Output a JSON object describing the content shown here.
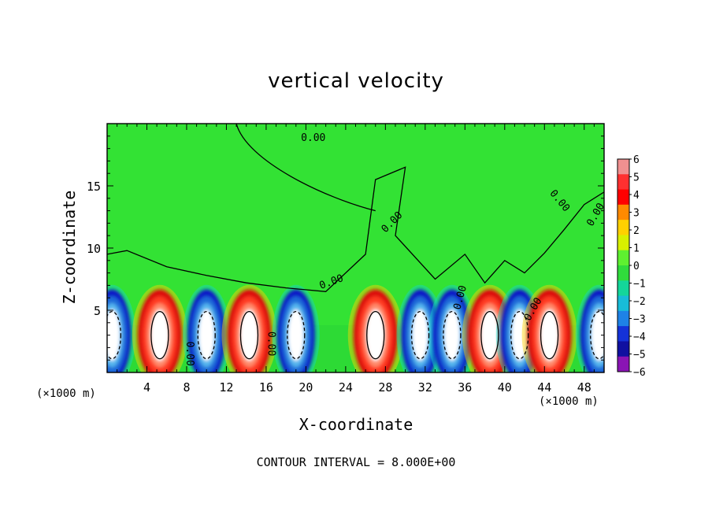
{
  "chart_data": {
    "type": "heatmap",
    "title": "vertical velocity",
    "xlabel": "X-coordinate",
    "ylabel": "Z-coordinate",
    "x_unit": "(×1000 m)",
    "z_unit": "(×1000 m)",
    "xlim": [
      0,
      50
    ],
    "ylim": [
      0,
      20
    ],
    "x_ticks": [
      4,
      8,
      12,
      16,
      20,
      24,
      28,
      32,
      36,
      40,
      44,
      48
    ],
    "y_ticks": [
      5,
      10,
      15
    ],
    "colorbar_ticks": [
      6,
      5,
      4,
      3,
      2,
      1,
      0,
      -1,
      -2,
      -3,
      -4,
      -5,
      -6
    ],
    "colorbar_range": [
      -6,
      6
    ],
    "contour_label": "0.00",
    "footer": "CONTOUR INTERVAL = 8.000E+00",
    "cells": [
      {
        "x": 0.5,
        "sign": -1
      },
      {
        "x": 5.3,
        "sign": 1
      },
      {
        "x": 10.0,
        "sign": -1
      },
      {
        "x": 14.3,
        "sign": 1
      },
      {
        "x": 19.0,
        "sign": -1
      },
      {
        "x": 27.0,
        "sign": 1
      },
      {
        "x": 31.5,
        "sign": -1
      },
      {
        "x": 34.7,
        "sign": -1
      },
      {
        "x": 38.5,
        "sign": 1
      },
      {
        "x": 41.5,
        "sign": -1
      },
      {
        "x": 44.5,
        "sign": 1
      },
      {
        "x": 49.5,
        "sign": -1
      }
    ]
  }
}
